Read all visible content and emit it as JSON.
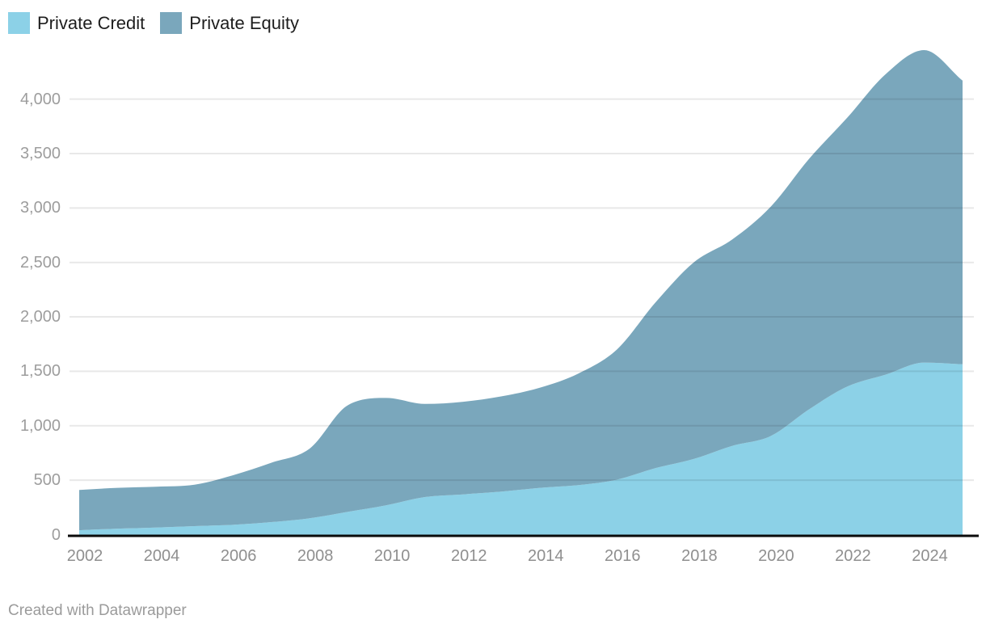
{
  "legend": {
    "items": [
      {
        "label": "Private Credit",
        "color": "#8cd1e7"
      },
      {
        "label": "Private Equity",
        "color": "#7aa7bc"
      }
    ]
  },
  "footer": {
    "text": "Created with Datawrapper"
  },
  "colors": {
    "background": "#ffffff",
    "private_credit": "#8cd1e7",
    "private_equity": "#7aa7bc",
    "gridline": "rgba(0,0,0,0.09)",
    "axis_baseline": "#0b0b0b",
    "y_tick_text": "#9d9d9d",
    "x_tick_text": "#8f8f8f",
    "legend_text": "#1d1d1d",
    "footer_text": "#9b9b9b"
  },
  "chart_data": {
    "type": "area",
    "stacked": true,
    "smooth": true,
    "title": "",
    "xlabel": "",
    "ylabel": "",
    "x": [
      2002,
      2003,
      2004,
      2005,
      2006,
      2007,
      2008,
      2009,
      2010,
      2011,
      2012,
      2013,
      2014,
      2015,
      2016,
      2017,
      2018,
      2019,
      2020,
      2021,
      2022,
      2023,
      2024,
      2025
    ],
    "series": [
      {
        "name": "Private Credit",
        "color": "#8cd1e7",
        "values": [
          40,
          55,
          65,
          78,
          90,
          115,
          150,
          210,
          270,
          345,
          370,
          395,
          430,
          455,
          505,
          610,
          695,
          815,
          905,
          1150,
          1360,
          1470,
          1580,
          1565
        ]
      },
      {
        "name": "Private Equity",
        "color": "#7aa7bc",
        "values": [
          370,
          375,
          375,
          380,
          455,
          545,
          640,
          980,
          985,
          855,
          850,
          875,
          920,
          1025,
          1195,
          1520,
          1805,
          1895,
          2105,
          2300,
          2470,
          2760,
          2870,
          2605
        ]
      }
    ],
    "stacked_totals": [
      410,
      430,
      440,
      458,
      545,
      660,
      790,
      1190,
      1255,
      1200,
      1220,
      1270,
      1350,
      1480,
      1700,
      2130,
      2500,
      2710,
      3010,
      3450,
      3830,
      4230,
      4450,
      4170
    ],
    "x_tick_years": [
      2002,
      2004,
      2006,
      2008,
      2010,
      2012,
      2014,
      2016,
      2018,
      2020,
      2022,
      2024
    ],
    "y_ticks": [
      0,
      500,
      1000,
      1500,
      2000,
      2500,
      3000,
      3500,
      4000
    ],
    "y_tick_labels": [
      "0",
      "500",
      "1,000",
      "1,500",
      "2,000",
      "2,500",
      "3,000",
      "3,500",
      "4,000"
    ],
    "xlim": [
      2002,
      2025
    ],
    "ylim": [
      0,
      4490
    ],
    "grid": true,
    "legend_position": "top-left"
  }
}
